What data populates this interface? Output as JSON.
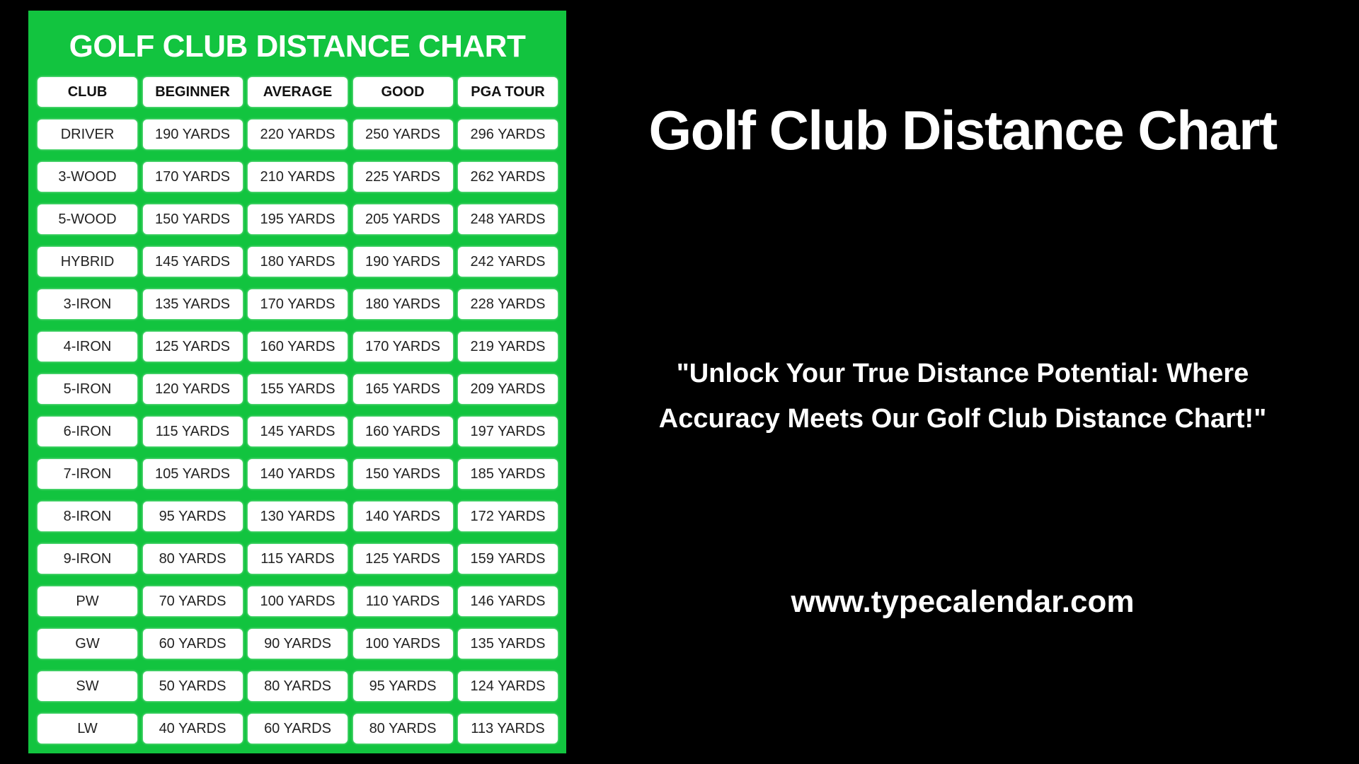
{
  "panel": {
    "title": "GOLF CLUB DISTANCE CHART",
    "background_color": "#12c43f",
    "headers": [
      "CLUB",
      "BEGINNER",
      "AVERAGE",
      "GOOD",
      "PGA TOUR"
    ],
    "rows": [
      [
        "DRIVER",
        "190 YARDS",
        "220 YARDS",
        "250 YARDS",
        "296 YARDS"
      ],
      [
        "3-WOOD",
        "170 YARDS",
        "210 YARDS",
        "225 YARDS",
        "262 YARDS"
      ],
      [
        "5-WOOD",
        "150 YARDS",
        "195 YARDS",
        "205 YARDS",
        "248 YARDS"
      ],
      [
        "HYBRID",
        "145 YARDS",
        "180 YARDS",
        "190 YARDS",
        "242 YARDS"
      ],
      [
        "3-IRON",
        "135 YARDS",
        "170 YARDS",
        "180 YARDS",
        "228 YARDS"
      ],
      [
        "4-IRON",
        "125 YARDS",
        "160 YARDS",
        "170 YARDS",
        "219 YARDS"
      ],
      [
        "5-IRON",
        "120 YARDS",
        "155 YARDS",
        "165 YARDS",
        "209 YARDS"
      ],
      [
        "6-IRON",
        "115 YARDS",
        "145 YARDS",
        "160 YARDS",
        "197 YARDS"
      ],
      [
        "7-IRON",
        "105 YARDS",
        "140 YARDS",
        "150 YARDS",
        "185 YARDS"
      ],
      [
        "8-IRON",
        "95 YARDS",
        "130 YARDS",
        "140 YARDS",
        "172 YARDS"
      ],
      [
        "9-IRON",
        "80 YARDS",
        "115 YARDS",
        "125 YARDS",
        "159 YARDS"
      ],
      [
        "PW",
        "70 YARDS",
        "100 YARDS",
        "110 YARDS",
        "146 YARDS"
      ],
      [
        "GW",
        "60 YARDS",
        "90 YARDS",
        "100 YARDS",
        "135 YARDS"
      ],
      [
        "SW",
        "50 YARDS",
        "80 YARDS",
        "95 YARDS",
        "124 YARDS"
      ],
      [
        "LW",
        "40 YARDS",
        "60 YARDS",
        "80 YARDS",
        "113 YARDS"
      ]
    ]
  },
  "right": {
    "title": "Golf Club Distance Chart",
    "quote_line1": "\"Unlock Your True Distance Potential: Where",
    "quote_line2": "Accuracy Meets Our Golf Club Distance Chart!\"",
    "url": "www.typecalendar.com"
  }
}
